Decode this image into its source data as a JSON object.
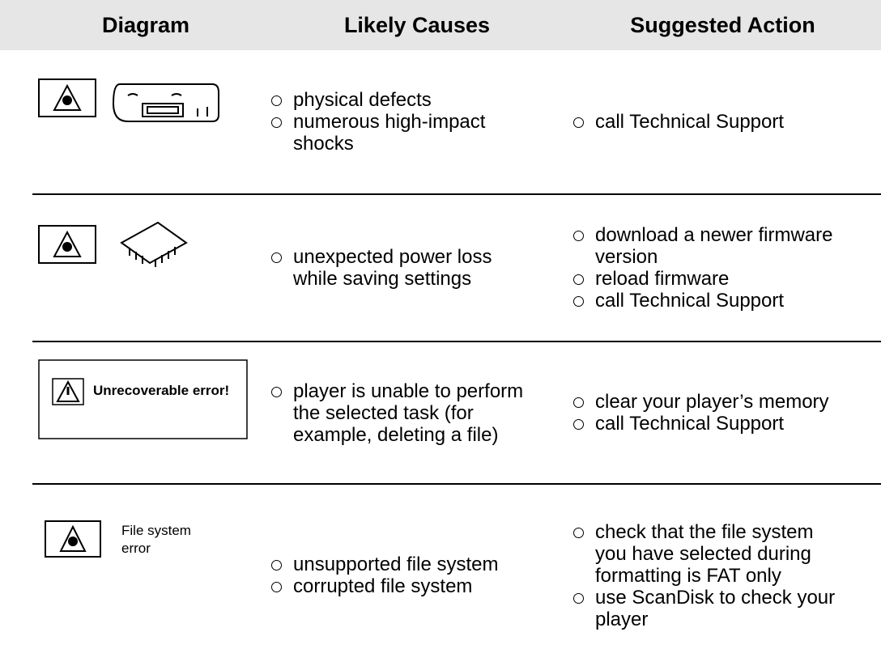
{
  "header": {
    "diagram": "Diagram",
    "causes": "Likely Causes",
    "actions": "Suggested Action"
  },
  "rows": [
    {
      "diagram_text": null,
      "causes": [
        "physical defects",
        "numerous high-impact shocks"
      ],
      "actions": [
        "call Technical Support"
      ]
    },
    {
      "diagram_text": null,
      "causes": [
        "unexpected power loss while saving settings"
      ],
      "actions": [
        "download a newer firmware version",
        "reload firmware",
        "call Technical Support"
      ]
    },
    {
      "diagram_text": "Unrecoverable error!",
      "causes": [
        "player is unable to perform the selected task (for example, deleting a file)"
      ],
      "actions": [
        "clear your player’s memory",
        "call Technical Support"
      ]
    },
    {
      "diagram_text": "File system error",
      "causes": [
        "unsupported file system",
        "corrupted file system"
      ],
      "actions": [
        "check that the file system you have selected during formatting is FAT only",
        "use ScanDisk to check your player"
      ]
    }
  ]
}
